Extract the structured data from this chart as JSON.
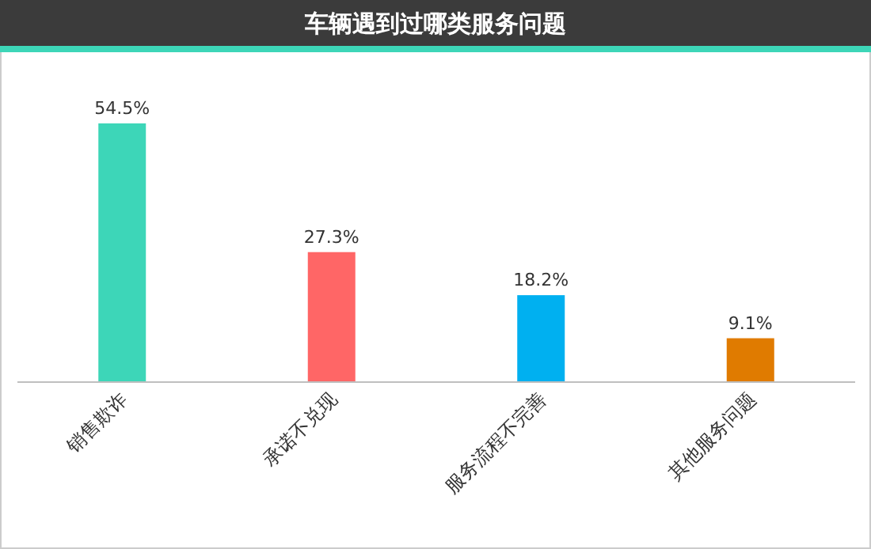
{
  "chart_data": {
    "type": "bar",
    "title": "车辆遇到过哪类服务问题",
    "categories": [
      "销售欺诈",
      "承诺不兑现",
      "服务流程不完善",
      "其他服务问题"
    ],
    "values": [
      54.5,
      27.3,
      18.2,
      9.1
    ],
    "colors": [
      "#3dd6b8",
      "#ff6666",
      "#00b0f0",
      "#e07b00"
    ],
    "value_labels": [
      "54.5%",
      "27.3%",
      "18.2%",
      "9.1%"
    ]
  }
}
